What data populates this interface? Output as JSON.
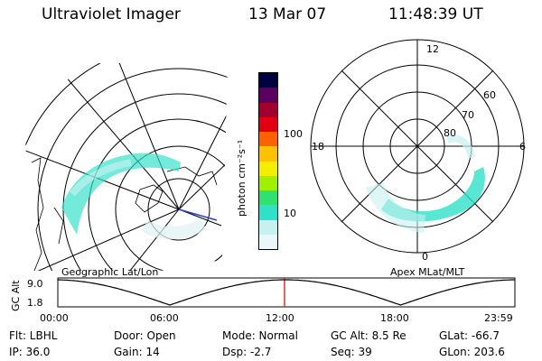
{
  "header": {
    "title": "Ultraviolet Imager",
    "date": "13 Mar 07",
    "time": "11:48:39 UT"
  },
  "colorbar": {
    "unit_label": "photon cm⁻²s⁻¹",
    "ticks": [
      "100",
      "10"
    ],
    "scale": "log",
    "colors": [
      "#000040",
      "#5a0060",
      "#a00030",
      "#e00010",
      "#ff6000",
      "#ffc000",
      "#f0f000",
      "#a0f000",
      "#30e070",
      "#30e0c8",
      "#c8f0f0",
      "#e8f8f8"
    ]
  },
  "geo_map": {
    "caption": "Geographic Lat/Lon"
  },
  "apex_map": {
    "caption": "Apex MLat/MLT",
    "mlt_labels": {
      "top": "12",
      "left": "18",
      "right": "6",
      "bottom": "0"
    },
    "lat_labels": [
      "60",
      "70",
      "80"
    ]
  },
  "orbit": {
    "axis_label": "GC Alt",
    "y_ticks": [
      "9.0",
      "1.8"
    ],
    "x_ticks": [
      "00:00",
      "06:00",
      "12:00",
      "18:00",
      "23:59"
    ],
    "current_time_fraction": 0.496,
    "marker_color": "#e03030"
  },
  "status": {
    "flt": "Flt: LBHL",
    "ip": "IP: 36.0",
    "door": "Door: Open",
    "gain": "Gain: 14",
    "mode": "Mode: Normal",
    "dsp": "Dsp:   -2.7",
    "gc_alt": "GC Alt: 8.5 Re",
    "seq": "Seq: 39",
    "glat": "GLat: -66.7",
    "glon": "GLon: 203.6"
  }
}
